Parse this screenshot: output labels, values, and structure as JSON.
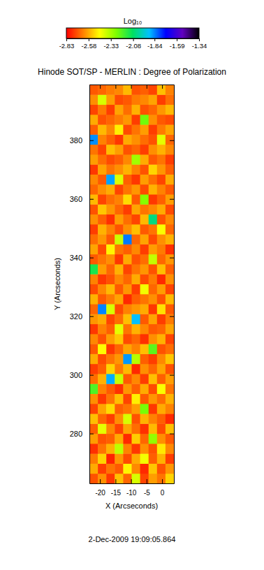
{
  "chart_data": {
    "type": "heatmap",
    "title": "Hinode SOT/SP - MERLIN : Degree of Polarization",
    "subtitle": "2-Dec-2009 19:09:05.864",
    "x_label": "X (Arcseconds)",
    "y_label": "Y (Arcseconds)",
    "xlim": [
      -23.4,
      3.8
    ],
    "ylim": [
      263,
      399
    ],
    "xticks": [
      -20,
      -15,
      -10,
      -5,
      0
    ],
    "yticks": [
      280,
      300,
      320,
      340,
      360,
      380
    ],
    "x": [
      -22.04,
      -19.32,
      -16.6,
      -13.88,
      -11.16,
      -8.44,
      -5.72,
      -3.0,
      -0.28,
      2.44
    ],
    "y": [
      264.7,
      268.1,
      271.5,
      274.9,
      278.3,
      281.7,
      285.1,
      288.5,
      291.9,
      295.3,
      298.7,
      302.1,
      305.5,
      308.9,
      312.3,
      315.7,
      319.1,
      322.5,
      325.9,
      329.3,
      332.7,
      336.1,
      339.5,
      342.9,
      346.3,
      349.7,
      353.1,
      356.5,
      359.9,
      363.3,
      366.7,
      370.1,
      373.5,
      376.9,
      380.3,
      383.7,
      387.1,
      390.5,
      393.9,
      397.3
    ],
    "values": [
      [
        -2.71,
        -2.62,
        -2.75,
        -2.55,
        -2.68,
        -2.4,
        -2.73,
        -2.6,
        -2.66,
        -2.52
      ],
      [
        -2.58,
        -2.74,
        -2.66,
        -2.7,
        -2.47,
        -2.63,
        -2.77,
        -2.54,
        -2.71,
        -2.61
      ],
      [
        -2.65,
        -2.52,
        -2.78,
        -2.61,
        -2.72,
        -2.58,
        -2.44,
        -2.69,
        -2.57,
        -2.74
      ],
      [
        -2.76,
        -2.66,
        -2.57,
        -2.36,
        -2.64,
        -2.75,
        -2.62,
        -2.71,
        -2.49,
        -2.63
      ],
      [
        -2.6,
        -2.71,
        -2.69,
        -2.58,
        -2.77,
        -2.53,
        -2.68,
        -2.3,
        -2.62,
        -2.7
      ],
      [
        -2.69,
        -2.42,
        -2.63,
        -2.73,
        -2.59,
        -2.67,
        -2.76,
        -2.56,
        -2.72,
        -2.55
      ],
      [
        -2.55,
        -2.68,
        -2.74,
        -2.62,
        -2.4,
        -2.71,
        -2.57,
        -2.64,
        -2.69,
        -2.77
      ],
      [
        -2.73,
        -2.59,
        -2.51,
        -2.69,
        -2.66,
        -2.6,
        -2.26,
        -2.75,
        -2.58,
        -2.64
      ],
      [
        -2.62,
        -2.75,
        -2.66,
        -2.55,
        -2.73,
        -2.48,
        -2.7,
        -2.61,
        -2.67,
        -2.57
      ],
      [
        -2.2,
        -2.64,
        -2.7,
        -2.76,
        -2.61,
        -2.69,
        -2.58,
        -2.72,
        -2.45,
        -2.66
      ],
      [
        -2.67,
        -2.57,
        -1.88,
        -2.38,
        -2.7,
        -2.63,
        -2.74,
        -2.55,
        -2.69,
        -2.6
      ],
      [
        -2.74,
        -2.69,
        -2.52,
        -2.65,
        -2.56,
        -2.77,
        -2.62,
        -2.68,
        -2.59,
        -2.71
      ],
      [
        -2.58,
        -2.72,
        -2.66,
        -2.61,
        -1.86,
        -2.35,
        -2.69,
        -2.74,
        -2.63,
        -2.54
      ],
      [
        -2.7,
        -2.46,
        -2.75,
        -2.68,
        -2.59,
        -2.64,
        -2.55,
        -2.22,
        -2.71,
        -2.67
      ],
      [
        -2.63,
        -2.71,
        -2.6,
        -2.54,
        -2.72,
        -2.68,
        -2.76,
        -2.62,
        -2.57,
        -2.73
      ],
      [
        -2.75,
        -2.64,
        -2.69,
        -2.42,
        -2.66,
        -2.57,
        -2.63,
        -2.7,
        -2.68,
        -2.59
      ],
      [
        -2.61,
        -2.58,
        -2.73,
        -2.67,
        -2.55,
        -1.9,
        -2.7,
        -2.59,
        -2.74,
        -2.65
      ],
      [
        -2.68,
        -1.84,
        -2.4,
        -2.72,
        -2.64,
        -2.61,
        -2.58,
        -2.75,
        -2.5,
        -2.7
      ],
      [
        -2.57,
        -2.7,
        -2.65,
        -2.59,
        -2.77,
        -2.69,
        -2.66,
        -2.62,
        -2.71,
        -2.56
      ],
      [
        -2.72,
        -2.63,
        -2.56,
        -2.7,
        -2.61,
        -2.74,
        -2.44,
        -2.68,
        -2.6,
        -2.73
      ],
      [
        -2.64,
        -2.75,
        -2.71,
        -2.63,
        -2.68,
        -2.58,
        -2.72,
        -2.65,
        -2.77,
        -2.62
      ],
      [
        -2.12,
        -2.6,
        -2.68,
        -2.57,
        -2.73,
        -2.66,
        -2.61,
        -2.71,
        -2.55,
        -2.69
      ],
      [
        -2.7,
        -2.66,
        -2.62,
        -2.75,
        -2.58,
        -2.71,
        -2.67,
        -2.37,
        -2.68,
        -2.61
      ],
      [
        -2.59,
        -2.72,
        -2.47,
        -2.66,
        -2.69,
        -2.63,
        -2.74,
        -2.6,
        -2.65,
        -2.76
      ],
      [
        -2.67,
        -2.61,
        -2.7,
        -2.38,
        -1.83,
        -2.68,
        -2.59,
        -2.72,
        -2.62,
        -2.57
      ],
      [
        -2.74,
        -2.57,
        -2.64,
        -2.71,
        -2.62,
        -2.55,
        -2.7,
        -2.66,
        -2.45,
        -2.68
      ],
      [
        -2.62,
        -2.69,
        -2.76,
        -2.6,
        -2.67,
        -2.73,
        -2.56,
        -2.05,
        -2.71,
        -2.63
      ],
      [
        -2.71,
        -2.54,
        -2.61,
        -2.68,
        -2.74,
        -2.59,
        -2.66,
        -2.63,
        -2.58,
        -2.72
      ],
      [
        -2.56,
        -2.73,
        -2.67,
        -2.64,
        -2.51,
        -2.7,
        -2.28,
        -2.75,
        -2.69,
        -2.6
      ],
      [
        -2.68,
        -2.62,
        -2.58,
        -2.73,
        -2.66,
        -2.61,
        -2.72,
        -2.57,
        -2.64,
        -2.7
      ],
      [
        -2.63,
        -2.7,
        -1.87,
        -2.41,
        -2.69,
        -2.75,
        -2.6,
        -2.67,
        -2.73,
        -2.58
      ],
      [
        -2.75,
        -2.59,
        -2.66,
        -2.62,
        -2.57,
        -2.64,
        -2.71,
        -2.52,
        -2.61,
        -2.69
      ],
      [
        -2.6,
        -2.67,
        -2.72,
        -2.69,
        -2.63,
        -2.32,
        -2.58,
        -2.7,
        -2.66,
        -2.74
      ],
      [
        -2.66,
        -2.73,
        -2.55,
        -2.6,
        -2.71,
        -2.68,
        -2.74,
        -2.62,
        -2.57,
        -2.63
      ],
      [
        -1.85,
        -2.64,
        -2.69,
        -2.75,
        -2.58,
        -2.62,
        -2.67,
        -2.71,
        -2.42,
        -2.68
      ],
      [
        -2.69,
        -2.56,
        -2.63,
        -2.48,
        -2.72,
        -2.66,
        -2.6,
        -2.74,
        -2.65,
        -2.59
      ],
      [
        -2.58,
        -2.71,
        -2.68,
        -2.65,
        -2.61,
        -2.74,
        -2.25,
        -2.62,
        -2.7,
        -2.72
      ],
      [
        -2.73,
        -2.65,
        -2.74,
        -2.59,
        -2.67,
        -2.57,
        -2.71,
        -2.68,
        -2.61,
        -2.56
      ],
      [
        -2.62,
        -2.4,
        -2.6,
        -2.72,
        -2.7,
        -2.65,
        -2.63,
        -2.59,
        -2.74,
        -2.67
      ],
      [
        -2.7,
        -2.68,
        -2.65,
        -2.63,
        -2.56,
        -2.71,
        -2.69,
        -2.73,
        -2.55,
        -2.64
      ]
    ],
    "colorbar": {
      "title": "Log₁₀",
      "range": [
        -2.83,
        -1.34
      ],
      "ticks": [
        -2.83,
        -2.58,
        -2.33,
        -2.08,
        -1.84,
        -1.59,
        -1.34
      ],
      "colors": [
        "#ff0000",
        "#ff7f00",
        "#ffff00",
        "#7fff00",
        "#00e060",
        "#00c0ff",
        "#0000ff",
        "#6000c0",
        "#000000"
      ]
    }
  }
}
